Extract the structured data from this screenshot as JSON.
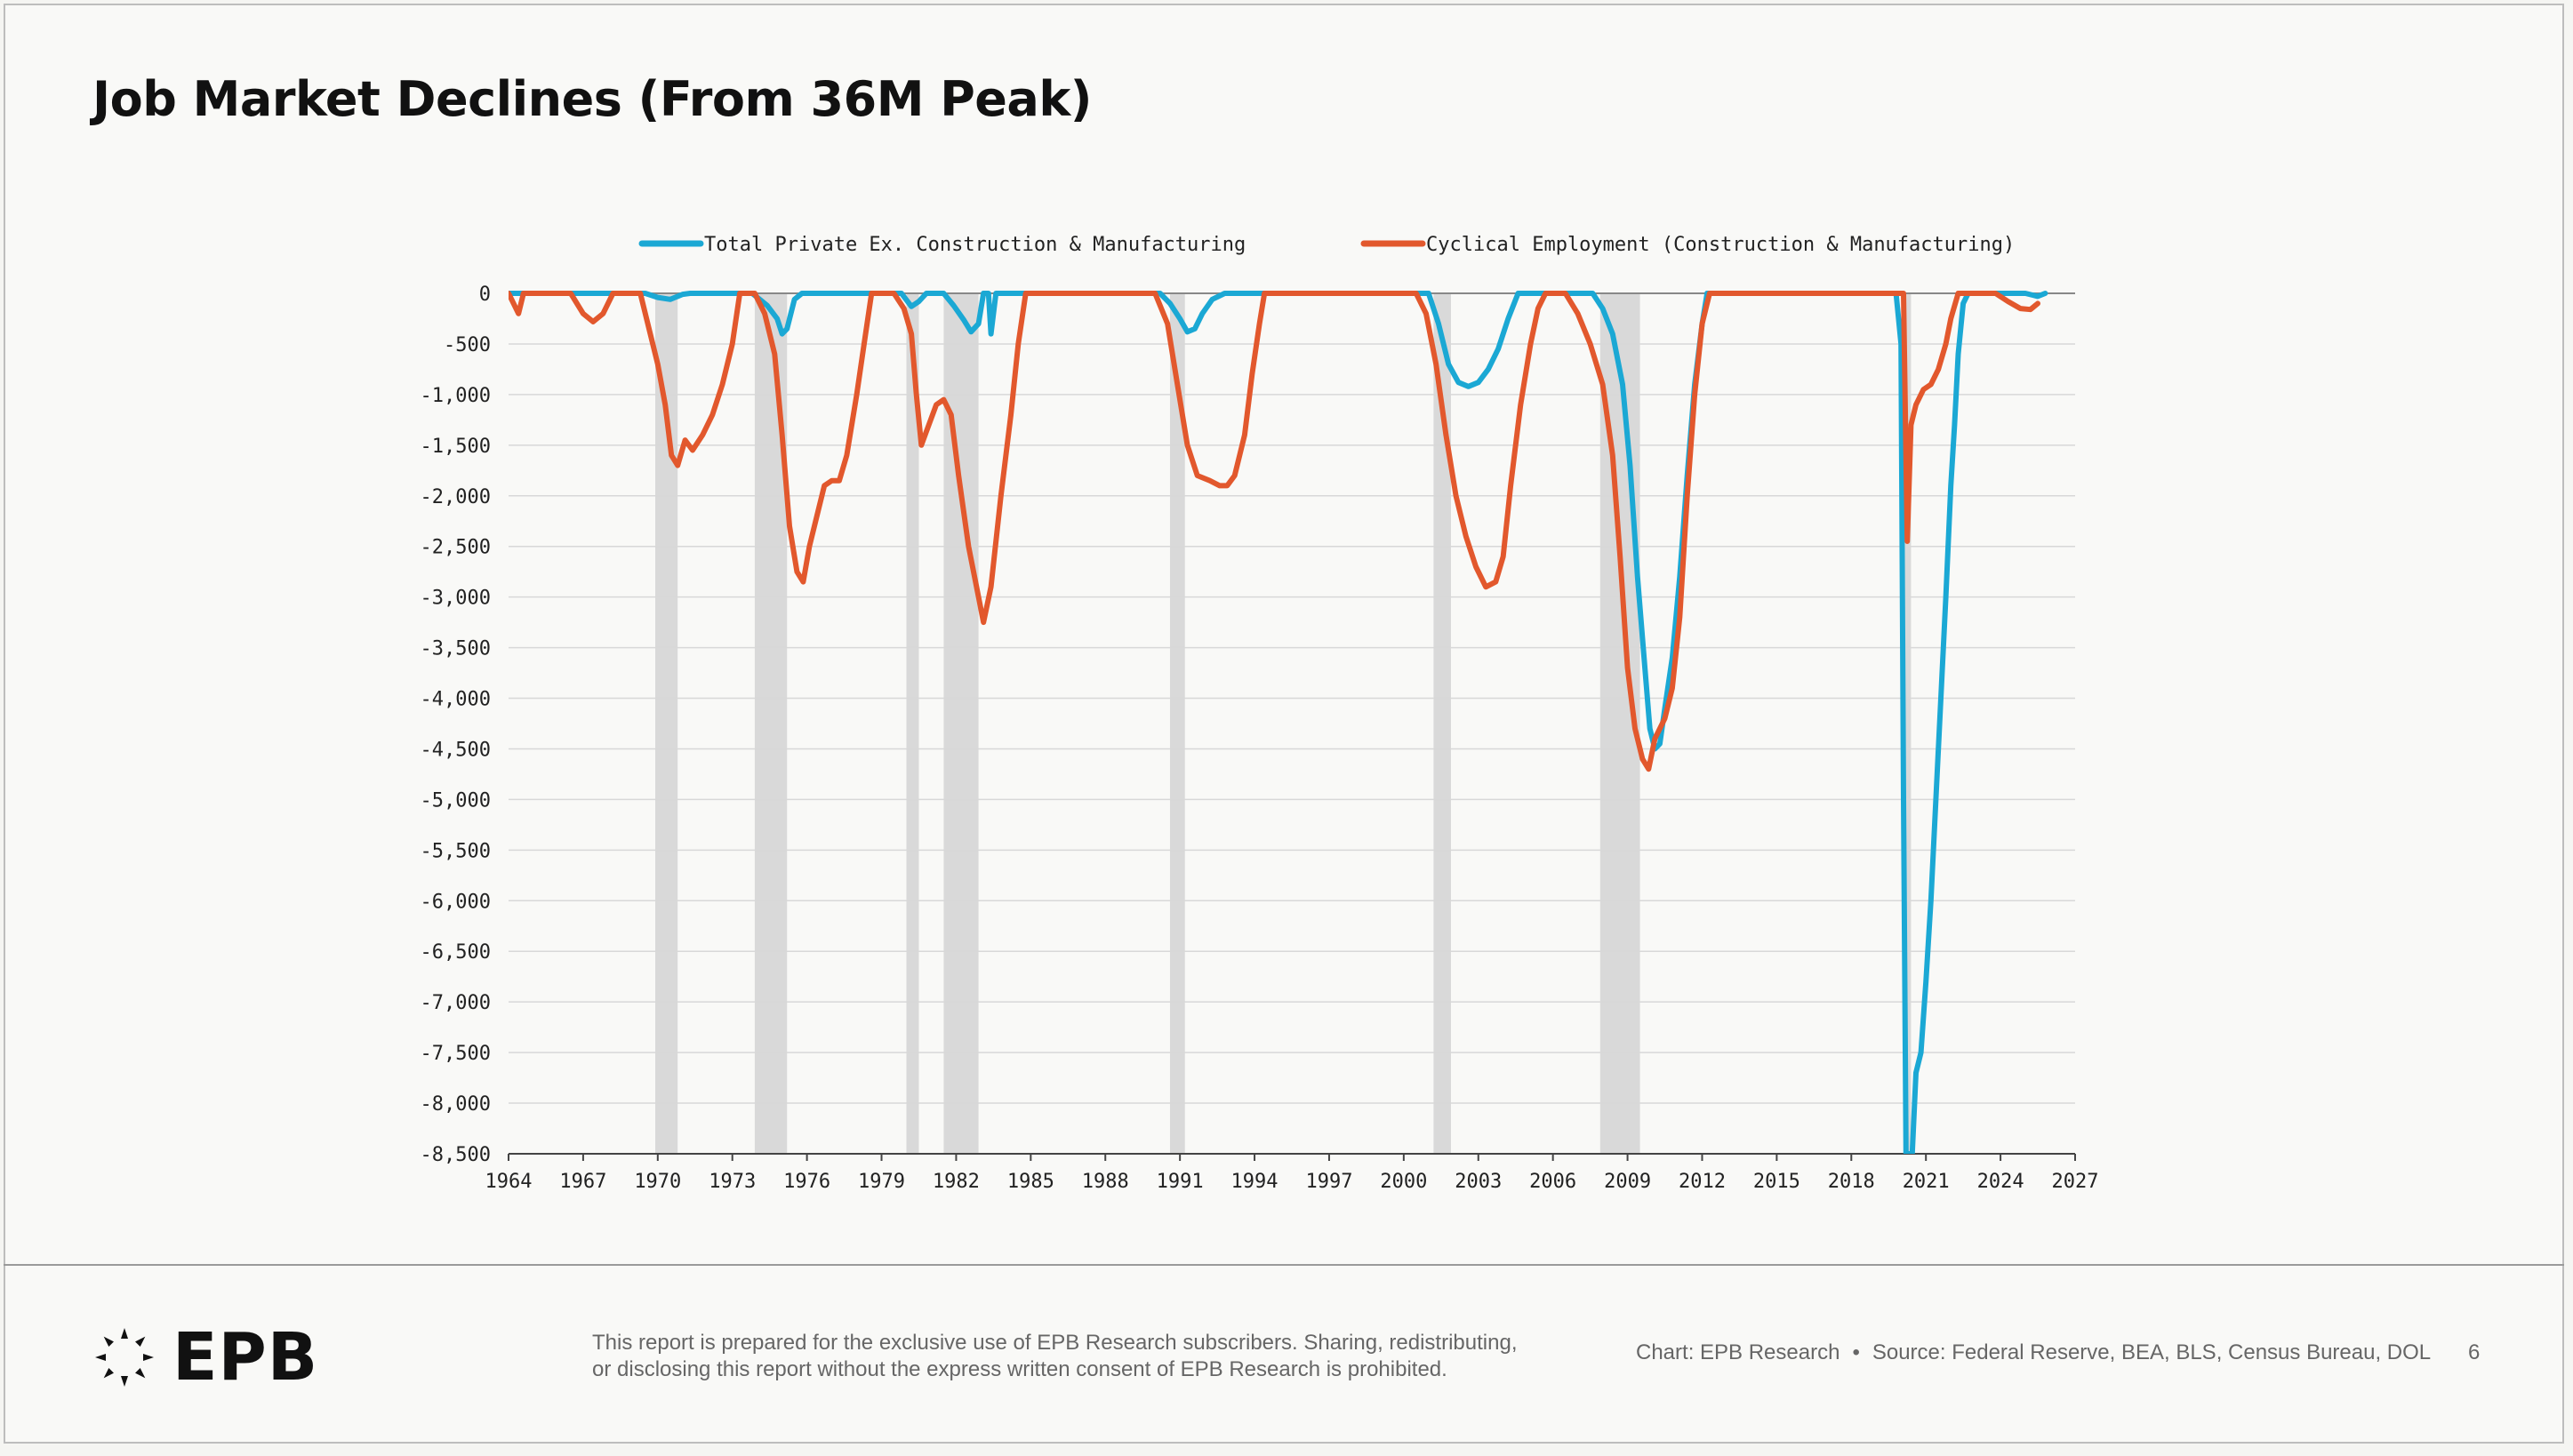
{
  "page": {
    "title": "Job Market Declines (From 36M Peak)",
    "footer": {
      "logo_text": "EPB",
      "disclaimer_line1": "This report is prepared for the exclusive use of EPB Research subscribers. Sharing, redistributing,",
      "disclaimer_line2": "or disclosing this report without the express written consent of EPB Research is prohibited.",
      "credit": "Chart: EPB Research",
      "separator": "•",
      "source": "Source: Federal Reserve, BEA, BLS, Census Bureau, DOL",
      "page_number": "6"
    }
  },
  "chart_data": {
    "type": "line",
    "title": "Job Market Declines (From 36M Peak)",
    "xlabel": "",
    "ylabel": "",
    "xlim": [
      1964,
      2027
    ],
    "ylim": [
      -8500,
      0
    ],
    "x_ticks": [
      1964,
      1967,
      1970,
      1973,
      1976,
      1979,
      1982,
      1985,
      1988,
      1991,
      1994,
      1997,
      2000,
      2003,
      2006,
      2009,
      2012,
      2015,
      2018,
      2021,
      2024,
      2027
    ],
    "x_tick_labels": [
      "1964",
      "1967",
      "1970",
      "1973",
      "1976",
      "1979",
      "1982",
      "1985",
      "1988",
      "1991",
      "1994",
      "1997",
      "2000",
      "2003",
      "2006",
      "2009",
      "2012",
      "2015",
      "2018",
      "2021",
      "2024",
      "2027"
    ],
    "y_ticks": [
      0,
      -500,
      -1000,
      -1500,
      -2000,
      -2500,
      -3000,
      -3500,
      -4000,
      -4500,
      -5000,
      -5500,
      -6000,
      -6500,
      -7000,
      -7500,
      -8000,
      -8500
    ],
    "y_tick_labels": [
      "0",
      "-500",
      "-1,000",
      "-1,500",
      "-2,000",
      "-2,500",
      "-3,000",
      "-3,500",
      "-4,000",
      "-4,500",
      "-5,000",
      "-5,500",
      "-6,000",
      "-6,500",
      "-7,000",
      "-7,500",
      "-8,000",
      "-8,500"
    ],
    "grid": true,
    "legend_position": "top",
    "recessions": [
      [
        1969.9,
        1970.8
      ],
      [
        1973.9,
        1975.2
      ],
      [
        1980.0,
        1980.5
      ],
      [
        1981.5,
        1982.9
      ],
      [
        1990.6,
        1991.2
      ],
      [
        2001.2,
        2001.9
      ],
      [
        2007.9,
        2009.5
      ],
      [
        2020.1,
        2020.4
      ]
    ],
    "recession_color": "#d9d9d9",
    "series": [
      {
        "name": "Total Private Ex. Construction & Manufacturing",
        "color": "#1ba8d4",
        "points": [
          [
            1964,
            0
          ],
          [
            1969.5,
            0
          ],
          [
            1970.0,
            -40
          ],
          [
            1970.5,
            -60
          ],
          [
            1971.0,
            -10
          ],
          [
            1971.3,
            0
          ],
          [
            1973.8,
            0
          ],
          [
            1974.4,
            -120
          ],
          [
            1974.8,
            -250
          ],
          [
            1975.0,
            -400
          ],
          [
            1975.2,
            -350
          ],
          [
            1975.5,
            -60
          ],
          [
            1975.8,
            0
          ],
          [
            1979.8,
            0
          ],
          [
            1980.2,
            -130
          ],
          [
            1980.5,
            -80
          ],
          [
            1980.8,
            0
          ],
          [
            1981.5,
            0
          ],
          [
            1981.9,
            -120
          ],
          [
            1982.3,
            -260
          ],
          [
            1982.6,
            -380
          ],
          [
            1982.9,
            -300
          ],
          [
            1983.1,
            0
          ],
          [
            1983.3,
            0
          ],
          [
            1983.4,
            -400
          ],
          [
            1983.6,
            0
          ],
          [
            1990.2,
            0
          ],
          [
            1990.6,
            -100
          ],
          [
            1991.0,
            -250
          ],
          [
            1991.3,
            -380
          ],
          [
            1991.6,
            -350
          ],
          [
            1991.9,
            -200
          ],
          [
            1992.3,
            -60
          ],
          [
            1992.8,
            0
          ],
          [
            2001.0,
            0
          ],
          [
            2001.4,
            -300
          ],
          [
            2001.8,
            -700
          ],
          [
            2002.2,
            -880
          ],
          [
            2002.6,
            -920
          ],
          [
            2003.0,
            -880
          ],
          [
            2003.4,
            -750
          ],
          [
            2003.8,
            -550
          ],
          [
            2004.2,
            -250
          ],
          [
            2004.6,
            0
          ],
          [
            2007.6,
            0
          ],
          [
            2008.0,
            -150
          ],
          [
            2008.4,
            -400
          ],
          [
            2008.8,
            -900
          ],
          [
            2009.1,
            -1700
          ],
          [
            2009.4,
            -2800
          ],
          [
            2009.7,
            -3700
          ],
          [
            2009.9,
            -4300
          ],
          [
            2010.1,
            -4500
          ],
          [
            2010.3,
            -4450
          ],
          [
            2010.5,
            -4100
          ],
          [
            2010.8,
            -3600
          ],
          [
            2011.1,
            -2800
          ],
          [
            2011.4,
            -1800
          ],
          [
            2011.7,
            -900
          ],
          [
            2012.0,
            -300
          ],
          [
            2012.2,
            0
          ],
          [
            2019.8,
            0
          ],
          [
            2020.0,
            -500
          ],
          [
            2020.1,
            -5000
          ],
          [
            2020.2,
            -8500
          ],
          [
            2020.45,
            -8500
          ],
          [
            2020.6,
            -7700
          ],
          [
            2020.8,
            -7500
          ],
          [
            2021.0,
            -6800
          ],
          [
            2021.2,
            -6000
          ],
          [
            2021.4,
            -5000
          ],
          [
            2021.6,
            -4000
          ],
          [
            2021.8,
            -3000
          ],
          [
            2022.0,
            -1900
          ],
          [
            2022.15,
            -1300
          ],
          [
            2022.3,
            -600
          ],
          [
            2022.5,
            -100
          ],
          [
            2022.7,
            0
          ],
          [
            2025.0,
            0
          ],
          [
            2025.5,
            -30
          ],
          [
            2025.8,
            0
          ]
        ]
      },
      {
        "name": "Cyclical Employment (Construction & Manufacturing)",
        "color": "#e2582d",
        "points": [
          [
            1964,
            0
          ],
          [
            1964.4,
            -200
          ],
          [
            1964.6,
            0
          ],
          [
            1966.5,
            0
          ],
          [
            1967.0,
            -200
          ],
          [
            1967.4,
            -280
          ],
          [
            1967.8,
            -200
          ],
          [
            1968.2,
            0
          ],
          [
            1969.3,
            0
          ],
          [
            1969.6,
            -300
          ],
          [
            1970.0,
            -700
          ],
          [
            1970.3,
            -1100
          ],
          [
            1970.55,
            -1600
          ],
          [
            1970.8,
            -1700
          ],
          [
            1971.1,
            -1450
          ],
          [
            1971.4,
            -1550
          ],
          [
            1971.8,
            -1400
          ],
          [
            1972.2,
            -1200
          ],
          [
            1972.6,
            -900
          ],
          [
            1973.0,
            -500
          ],
          [
            1973.3,
            0
          ],
          [
            1973.9,
            0
          ],
          [
            1974.3,
            -200
          ],
          [
            1974.7,
            -600
          ],
          [
            1975.0,
            -1400
          ],
          [
            1975.3,
            -2300
          ],
          [
            1975.6,
            -2750
          ],
          [
            1975.85,
            -2850
          ],
          [
            1976.1,
            -2500
          ],
          [
            1976.4,
            -2200
          ],
          [
            1976.7,
            -1900
          ],
          [
            1977.0,
            -1850
          ],
          [
            1977.3,
            -1850
          ],
          [
            1977.6,
            -1600
          ],
          [
            1978.0,
            -1000
          ],
          [
            1978.3,
            -500
          ],
          [
            1978.6,
            0
          ],
          [
            1979.5,
            0
          ],
          [
            1979.9,
            -150
          ],
          [
            1980.2,
            -400
          ],
          [
            1980.4,
            -1000
          ],
          [
            1980.6,
            -1500
          ],
          [
            1980.9,
            -1300
          ],
          [
            1981.2,
            -1100
          ],
          [
            1981.5,
            -1050
          ],
          [
            1981.8,
            -1200
          ],
          [
            1982.1,
            -1800
          ],
          [
            1982.5,
            -2500
          ],
          [
            1982.9,
            -3000
          ],
          [
            1983.1,
            -3250
          ],
          [
            1983.4,
            -2900
          ],
          [
            1983.8,
            -2000
          ],
          [
            1984.2,
            -1200
          ],
          [
            1984.5,
            -500
          ],
          [
            1984.8,
            0
          ],
          [
            1990.0,
            0
          ],
          [
            1990.5,
            -300
          ],
          [
            1990.9,
            -900
          ],
          [
            1991.3,
            -1500
          ],
          [
            1991.7,
            -1800
          ],
          [
            1992.2,
            -1850
          ],
          [
            1992.6,
            -1900
          ],
          [
            1992.9,
            -1900
          ],
          [
            1993.2,
            -1800
          ],
          [
            1993.6,
            -1400
          ],
          [
            1993.9,
            -800
          ],
          [
            1994.2,
            -300
          ],
          [
            1994.4,
            0
          ],
          [
            1999.5,
            0
          ],
          [
            2000.5,
            0
          ],
          [
            2000.9,
            -200
          ],
          [
            2001.3,
            -700
          ],
          [
            2001.7,
            -1400
          ],
          [
            2002.1,
            -2000
          ],
          [
            2002.5,
            -2400
          ],
          [
            2002.9,
            -2700
          ],
          [
            2003.3,
            -2900
          ],
          [
            2003.7,
            -2850
          ],
          [
            2004.0,
            -2600
          ],
          [
            2004.3,
            -1900
          ],
          [
            2004.7,
            -1100
          ],
          [
            2005.1,
            -500
          ],
          [
            2005.4,
            -150
          ],
          [
            2005.7,
            0
          ],
          [
            2006.5,
            0
          ],
          [
            2007.0,
            -200
          ],
          [
            2007.5,
            -500
          ],
          [
            2008.0,
            -900
          ],
          [
            2008.4,
            -1600
          ],
          [
            2008.7,
            -2600
          ],
          [
            2009.0,
            -3700
          ],
          [
            2009.3,
            -4300
          ],
          [
            2009.6,
            -4600
          ],
          [
            2009.85,
            -4700
          ],
          [
            2010.1,
            -4400
          ],
          [
            2010.5,
            -4200
          ],
          [
            2010.8,
            -3900
          ],
          [
            2011.1,
            -3200
          ],
          [
            2011.4,
            -2000
          ],
          [
            2011.7,
            -1000
          ],
          [
            2012.0,
            -300
          ],
          [
            2012.3,
            0
          ],
          [
            2020.1,
            0
          ],
          [
            2020.25,
            -2450
          ],
          [
            2020.4,
            -1300
          ],
          [
            2020.6,
            -1100
          ],
          [
            2020.9,
            -950
          ],
          [
            2021.2,
            -900
          ],
          [
            2021.5,
            -750
          ],
          [
            2021.8,
            -500
          ],
          [
            2022.0,
            -250
          ],
          [
            2022.3,
            0
          ],
          [
            2023.8,
            0
          ],
          [
            2024.3,
            -80
          ],
          [
            2024.8,
            -150
          ],
          [
            2025.2,
            -160
          ],
          [
            2025.5,
            -100
          ]
        ]
      }
    ]
  }
}
